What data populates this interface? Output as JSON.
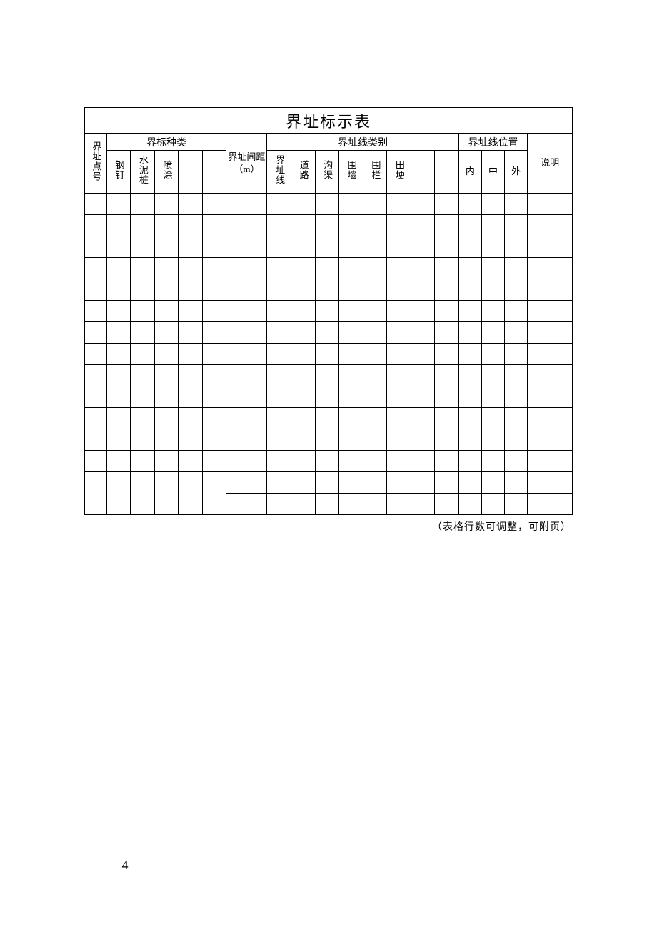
{
  "title": "界址标示表",
  "headers": {
    "point_no": "界址点号",
    "marker_type_group": "界标种类",
    "marker_types": [
      "钢钉",
      "水泥桩",
      "喷涂",
      "",
      ""
    ],
    "distance": "界址间距（m）",
    "line_type_group": "界址线类别",
    "line_types": [
      "界址线",
      "道路",
      "沟渠",
      "围墙",
      "围栏",
      "田埂",
      "",
      ""
    ],
    "line_pos_group": "界址线位置",
    "line_pos": [
      "内",
      "中",
      "外"
    ],
    "remark": "说明"
  },
  "footnote": "（表格行数可调整，可附页）",
  "page_number": "4",
  "colors": {
    "border": "#000000",
    "background": "#ffffff",
    "text": "#000000"
  },
  "layout": {
    "num_point_rows": 14,
    "col_widths_pct": {
      "point_no": 4.2,
      "marker_each": 4.6,
      "distance": 7.8,
      "line_type_each": 4.6,
      "line_pos_each": 4.4,
      "remark": 8.6
    },
    "font_sizes": {
      "title": 22,
      "group_header": 14,
      "sub_header": 13,
      "footnote": 14,
      "page_num": 18
    }
  }
}
